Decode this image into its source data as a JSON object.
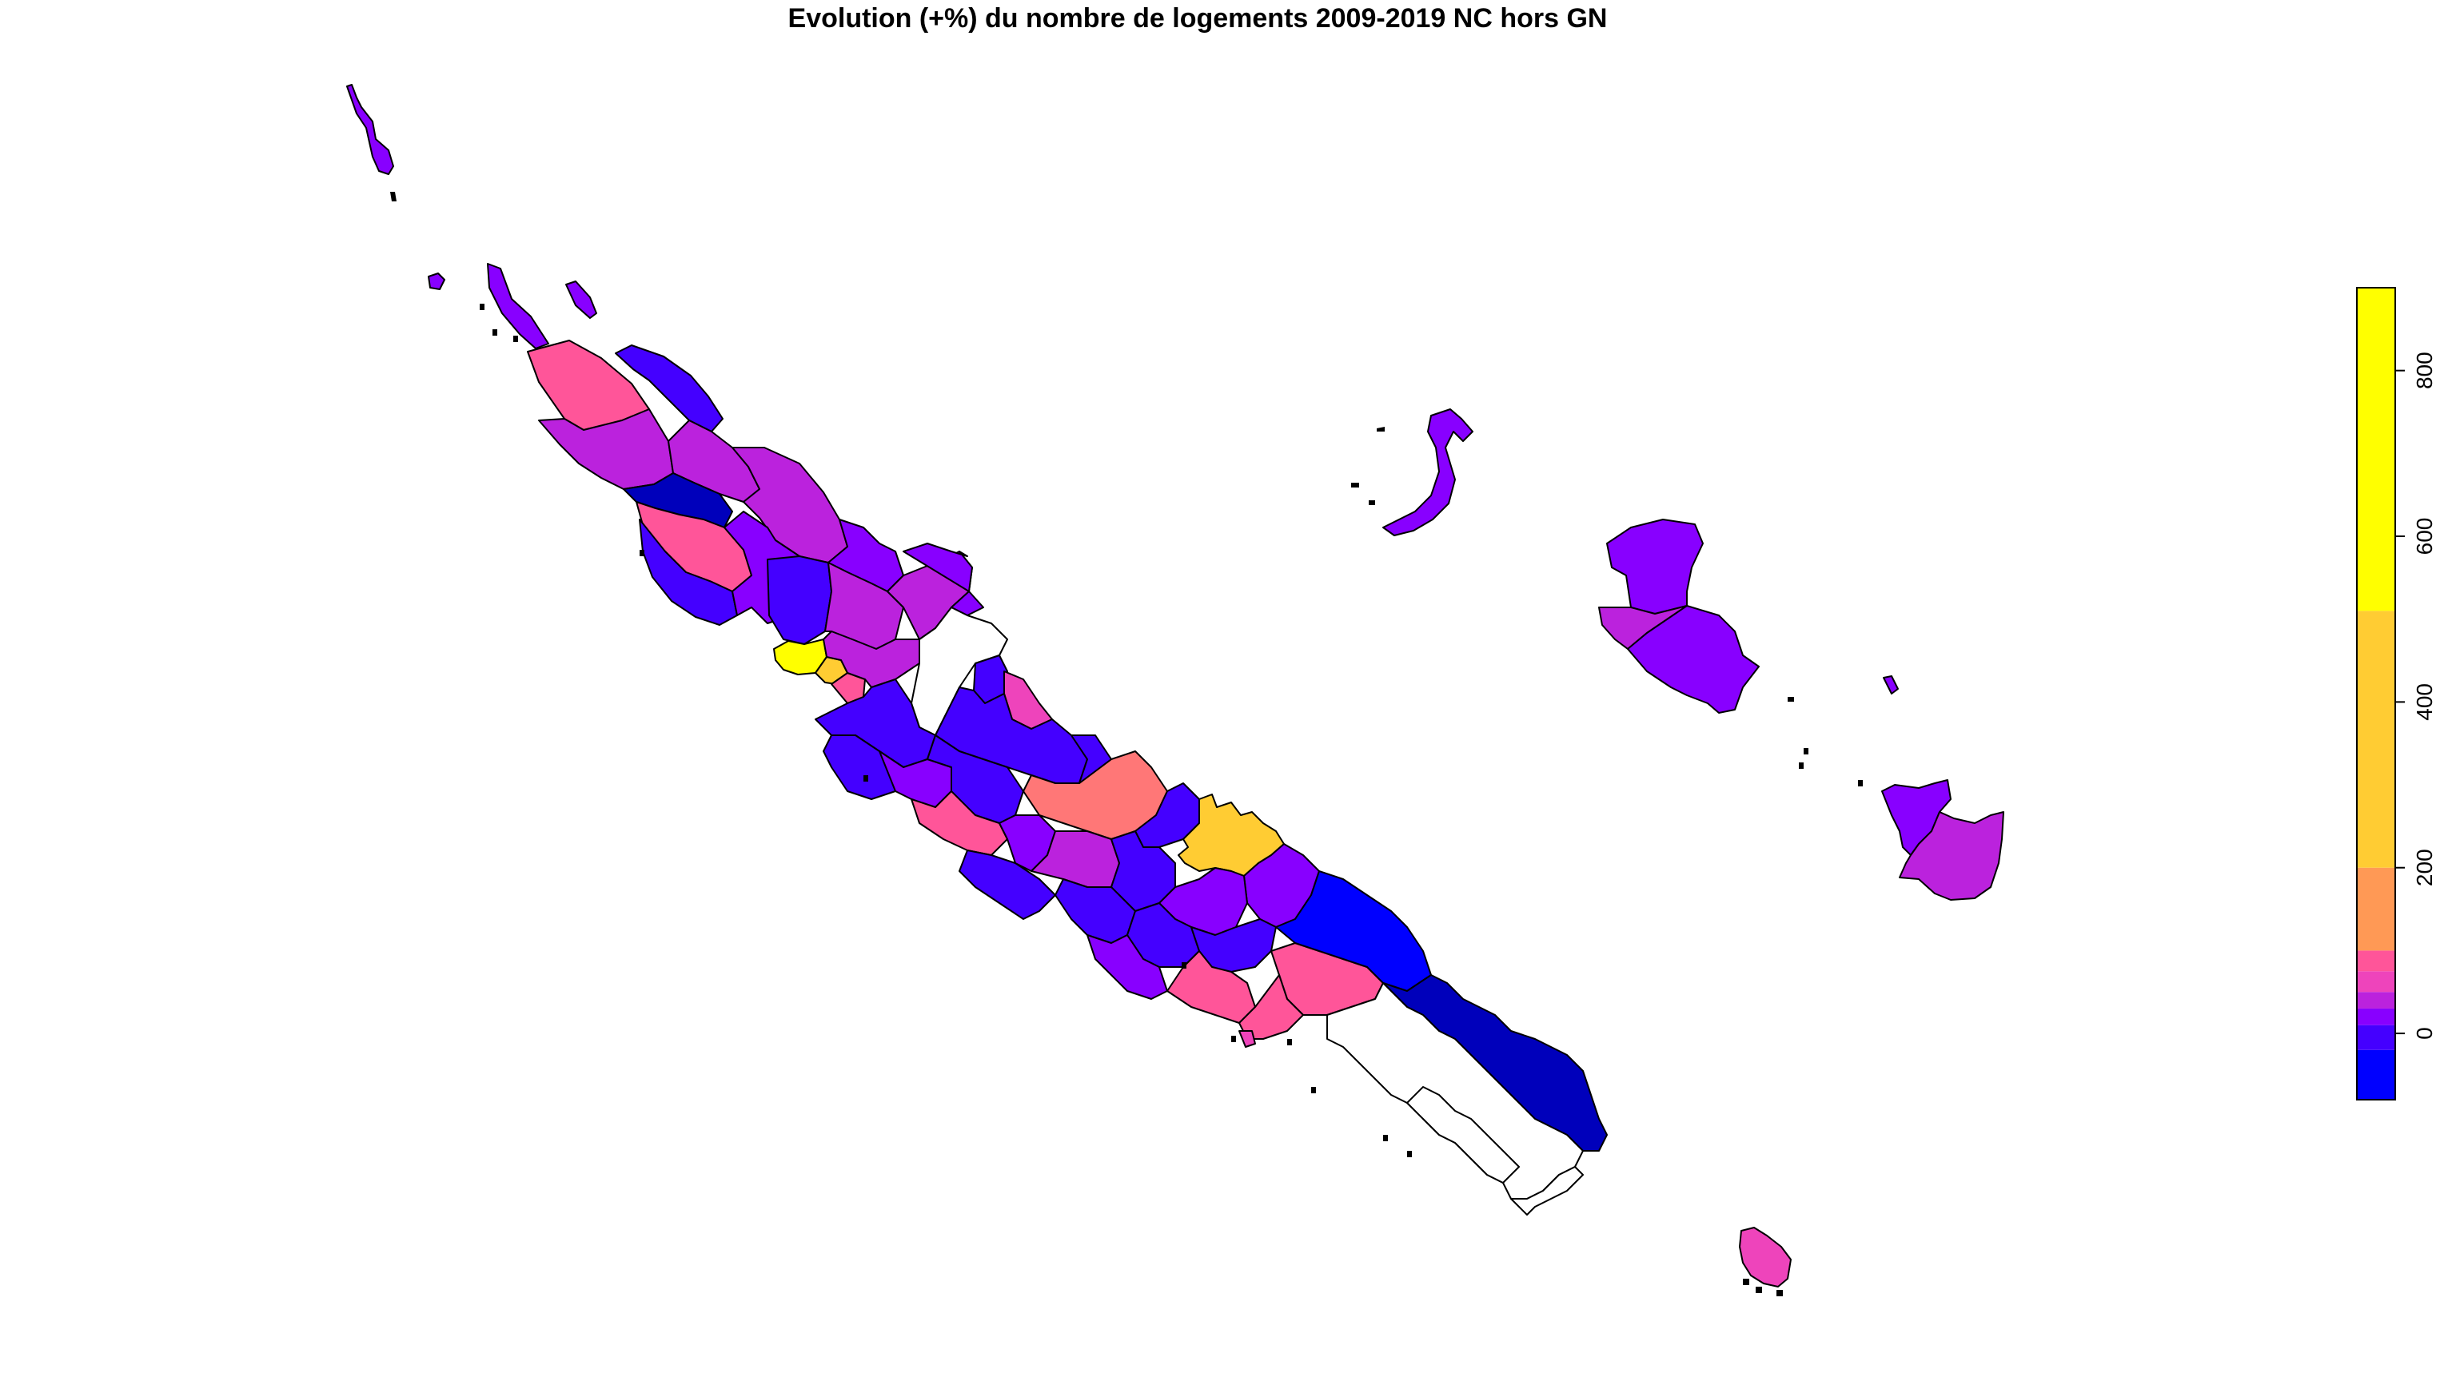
{
  "title": "Evolution (+%) du nombre de logements 2009-2019 NC hors GN",
  "colors": {
    "no_data": "#FFFFFF",
    "navy": "#0000BB",
    "blue": "#0000FF",
    "indigo": "#4400FF",
    "violet": "#8800FF",
    "purple": "#BB22DD",
    "magenta": "#EE44BB",
    "pink": "#FF5599",
    "salmon": "#FF7777",
    "orange": "#FF9955",
    "gold": "#FFCC33",
    "yellow": "#FFFF00",
    "outline": "#000000"
  },
  "legend": {
    "type": "colorbar",
    "range": [
      -80,
      900
    ],
    "ticks": [
      "0",
      "200",
      "400",
      "600",
      "800"
    ],
    "bins": [
      {
        "from": -80,
        "to": -20,
        "color": "#0000FF"
      },
      {
        "from": -20,
        "to": 10,
        "color": "#4400FF"
      },
      {
        "from": 10,
        "to": 30,
        "color": "#8800FF"
      },
      {
        "from": 30,
        "to": 50,
        "color": "#BB22DD"
      },
      {
        "from": 50,
        "to": 75,
        "color": "#EE44BB"
      },
      {
        "from": 75,
        "to": 100,
        "color": "#FF5599"
      },
      {
        "from": 100,
        "to": 200,
        "color": "#FF9955"
      },
      {
        "from": 200,
        "to": 510,
        "color": "#FFCC33"
      },
      {
        "from": 510,
        "to": 900,
        "color": "#FFFF00"
      }
    ]
  }
}
